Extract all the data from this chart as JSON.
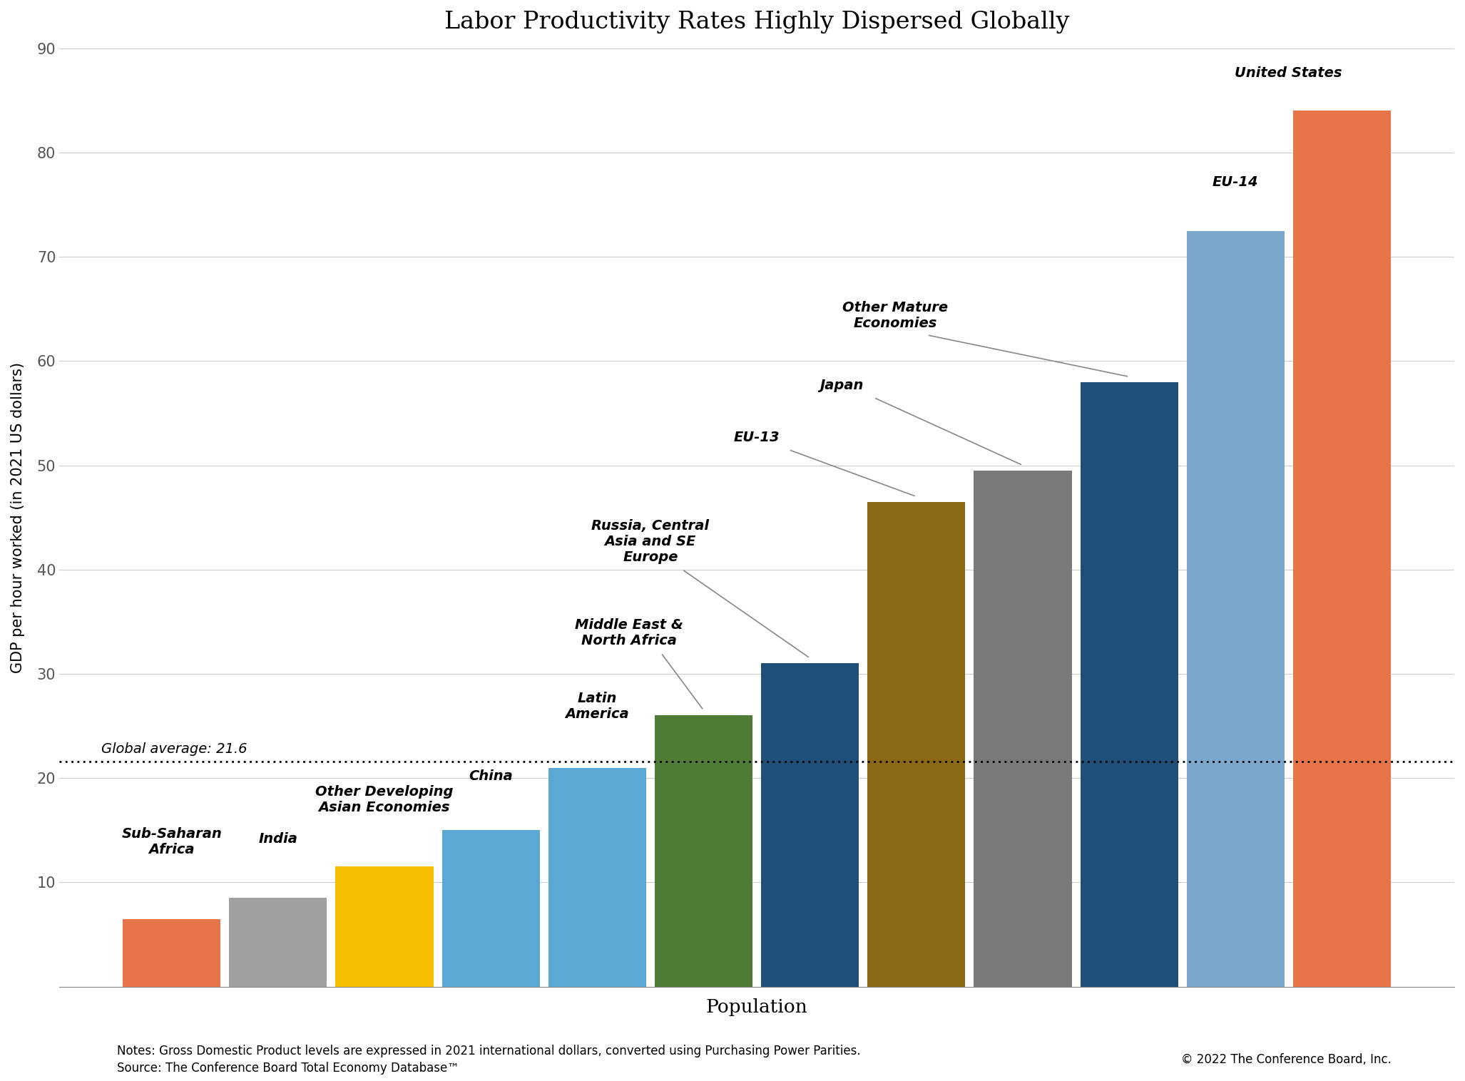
{
  "title": "Labor Productivity Rates Highly Dispersed Globally",
  "xlabel": "Population",
  "ylabel": "GDP per hour worked (in 2021 US dollars)",
  "ylim": [
    0,
    90
  ],
  "yticks": [
    0,
    10,
    20,
    30,
    40,
    50,
    60,
    70,
    80,
    90
  ],
  "global_average": 21.6,
  "global_average_label": "Global average: 21.6",
  "categories": [
    "Sub-Saharan\nAfrica",
    "India",
    "Other Developing\nAsian Economies",
    "China",
    "Latin\nAmerica",
    "Middle East &\nNorth Africa",
    "Russia, Central\nAsia and SE\nEurope",
    "EU-13",
    "Japan",
    "Other Mature\nEconomies",
    "EU-14",
    "United States"
  ],
  "values": [
    6.5,
    8.5,
    11.5,
    15.0,
    21.0,
    26.0,
    31.0,
    46.5,
    49.5,
    58.0,
    72.5,
    84.0
  ],
  "bar_colors": [
    "#E8744A",
    "#A0A0A0",
    "#F5BE00",
    "#5BA8D4",
    "#5BA8D4",
    "#4E7C35",
    "#1F4E79",
    "#8B6914",
    "#7A7A7A",
    "#1F4E79",
    "#7BA7CC",
    "#E8744A"
  ],
  "notes_line1": "Notes: Gross Domestic Product levels are expressed in 2021 international dollars, converted using Purchasing Power Parities.",
  "notes_line2": "Source: The Conference Board Total Economy Database™",
  "copyright": "© 2022 The Conference Board, Inc.",
  "background_color": "#FFFFFF",
  "title_fontsize": 24,
  "label_fontsize": 15,
  "annotation_fontsize": 14,
  "notes_fontsize": 12
}
